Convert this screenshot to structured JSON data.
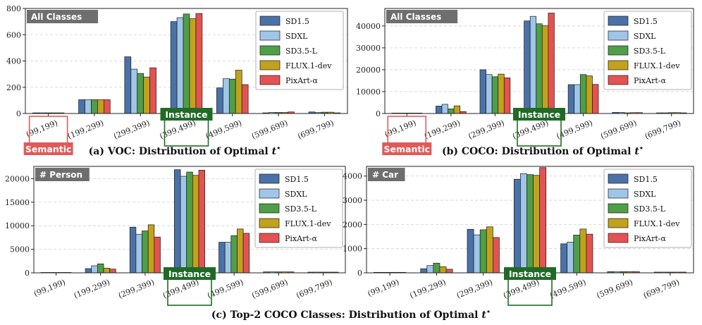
{
  "colors": {
    "SD1.5": "#4a72a8",
    "SDXL": "#9fc6e8",
    "SD3.5-L": "#4f9e48",
    "FLUX.1-dev": "#c2a21c",
    "PixArt-α": "#e45252",
    "badge_bg": "#6e6e6e",
    "semantic": "#e05a5a",
    "instance": "#1f6b25"
  },
  "captions": {
    "top_left": "(a) VOC: Distribution of Optimal",
    "top_right": "(b) COCO: Distribution of Optimal",
    "bottom": "(c) Top-2 COCO Classes: Distribution of Optimal",
    "symbol": "t",
    "symbol_sup": "⋆"
  },
  "callouts": {
    "semantic": "Semantic",
    "instance": "Instance"
  },
  "chart_data": [
    {
      "type": "bar",
      "badge": "All Classes",
      "categories": [
        "(99,199)",
        "(199,299)",
        "(299,399)",
        "(399,499)",
        "(499,599)",
        "(599,699)",
        "(699,799)"
      ],
      "series": [
        {
          "name": "SD1.5",
          "values": [
            5,
            105,
            432,
            700,
            195,
            5,
            12
          ]
        },
        {
          "name": "SDXL",
          "values": [
            5,
            105,
            338,
            730,
            265,
            8,
            8
          ]
        },
        {
          "name": "SD3.5-L",
          "values": [
            5,
            105,
            305,
            758,
            262,
            8,
            10
          ]
        },
        {
          "name": "FLUX.1-dev",
          "values": [
            5,
            105,
            278,
            722,
            330,
            8,
            10
          ]
        },
        {
          "name": "PixArt-α",
          "values": [
            5,
            105,
            348,
            762,
            220,
            12,
            5
          ]
        }
      ],
      "yticks": [
        "0",
        "200",
        "400",
        "600",
        "800"
      ],
      "ylim": [
        0,
        800
      ],
      "grid": true,
      "legend": "top-right"
    },
    {
      "type": "bar",
      "badge": "All Classes",
      "categories": [
        "(99,199)",
        "(199,299)",
        "(299,399)",
        "(399,499)",
        "(499,599)",
        "(599,699)",
        "(699,799)"
      ],
      "series": [
        {
          "name": "SD1.5",
          "values": [
            200,
            3400,
            20000,
            42300,
            13200,
            500,
            300
          ]
        },
        {
          "name": "SDXL",
          "values": [
            200,
            4200,
            17800,
            44400,
            13200,
            500,
            300
          ]
        },
        {
          "name": "SD3.5-L",
          "values": [
            200,
            2100,
            16800,
            41000,
            17800,
            300,
            400
          ]
        },
        {
          "name": "FLUX.1-dev",
          "values": [
            200,
            3500,
            18000,
            40100,
            17200,
            400,
            400
          ]
        },
        {
          "name": "PixArt-α",
          "values": [
            200,
            900,
            16300,
            45900,
            13300,
            400,
            300
          ]
        }
      ],
      "yticks": [
        "0",
        "10000",
        "20000",
        "30000",
        "40000"
      ],
      "ylim": [
        0,
        48000
      ],
      "grid": true,
      "legend": "top-right"
    },
    {
      "type": "bar",
      "badge": "# Person",
      "categories": [
        "(99,199)",
        "(199,299)",
        "(299,399)",
        "(399,499)",
        "(499,599)",
        "(599,699)",
        "(699,799)"
      ],
      "series": [
        {
          "name": "SD1.5",
          "values": [
            80,
            900,
            9700,
            21900,
            6500,
            200,
            150
          ]
        },
        {
          "name": "SDXL",
          "values": [
            80,
            1500,
            8200,
            20500,
            6500,
            200,
            150
          ]
        },
        {
          "name": "SD3.5-L",
          "values": [
            80,
            1900,
            8900,
            21400,
            7900,
            200,
            150
          ]
        },
        {
          "name": "FLUX.1-dev",
          "values": [
            80,
            1000,
            10200,
            20700,
            9300,
            200,
            150
          ]
        },
        {
          "name": "PixArt-α",
          "values": [
            80,
            800,
            7600,
            21800,
            8400,
            200,
            150
          ]
        }
      ],
      "yticks": [
        "0",
        "5000",
        "10000",
        "15000",
        "20000"
      ],
      "ylim": [
        0,
        22600
      ],
      "grid": true,
      "legend": "top-right"
    },
    {
      "type": "bar",
      "badge": "# Car",
      "categories": [
        "(99,199)",
        "(199,299)",
        "(299,399)",
        "(399,499)",
        "(499,599)",
        "(599,699)",
        "(699,799)"
      ],
      "series": [
        {
          "name": "SD1.5",
          "values": [
            20,
            170,
            1800,
            3870,
            1200,
            50,
            30
          ]
        },
        {
          "name": "SDXL",
          "values": [
            20,
            300,
            1570,
            4100,
            1270,
            40,
            30
          ]
        },
        {
          "name": "SD3.5-L",
          "values": [
            20,
            400,
            1780,
            4060,
            1560,
            50,
            30
          ]
        },
        {
          "name": "FLUX.1-dev",
          "values": [
            20,
            250,
            1900,
            4030,
            1810,
            50,
            30
          ]
        },
        {
          "name": "PixArt-α",
          "values": [
            20,
            150,
            1460,
            4350,
            1600,
            50,
            30
          ]
        }
      ],
      "yticks": [
        "0",
        "1000",
        "2000",
        "3000",
        "4000"
      ],
      "ylim": [
        0,
        4400
      ],
      "grid": true,
      "legend": "top-right"
    }
  ]
}
